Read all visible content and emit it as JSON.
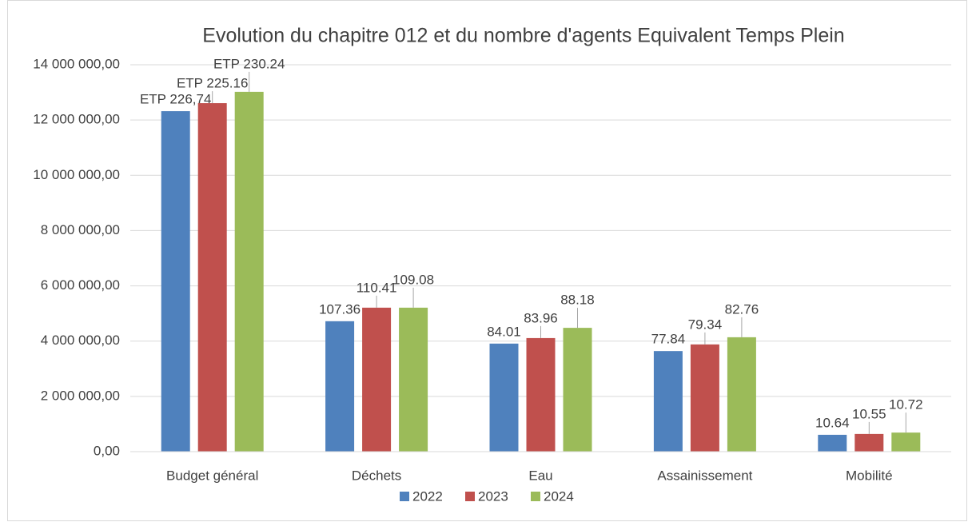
{
  "chart_data": {
    "type": "bar",
    "title": "Evolution du chapitre 012 et du nombre d'agents Equivalent Temps Plein",
    "categories": [
      "Budget général",
      "Déchets",
      "Eau",
      "Assainissement",
      "Mobilité"
    ],
    "series": [
      {
        "name": "2022",
        "color": "#4f81bd",
        "values": [
          12320000,
          4720000,
          3910000,
          3640000,
          610000
        ],
        "labels": [
          "ETP 226,74",
          "107.36",
          "84.01",
          "77.84",
          "10.64"
        ]
      },
      {
        "name": "2023",
        "color": "#c0504d",
        "values": [
          12610000,
          5210000,
          4110000,
          3880000,
          640000
        ],
        "labels": [
          "ETP 225.16",
          "110.41",
          "83.96",
          "79.34",
          "10.55"
        ]
      },
      {
        "name": "2024",
        "color": "#9bbb59",
        "values": [
          13020000,
          5210000,
          4480000,
          4140000,
          690000
        ],
        "labels": [
          "ETP 230.24",
          "109.08",
          "88.18",
          "82.76",
          "10.72"
        ]
      }
    ],
    "ylim": [
      0,
      14000000
    ],
    "yticks": [
      {
        "value": 0,
        "label": "0,00"
      },
      {
        "value": 2000000,
        "label": "2 000 000,00"
      },
      {
        "value": 4000000,
        "label": "4 000 000,00"
      },
      {
        "value": 6000000,
        "label": "6 000 000,00"
      },
      {
        "value": 8000000,
        "label": "8 000 000,00"
      },
      {
        "value": 10000000,
        "label": "10 000 000,00"
      },
      {
        "value": 12000000,
        "label": "12 000 000,00"
      },
      {
        "value": 14000000,
        "label": "14 000 000,00"
      }
    ],
    "grid": true,
    "legend": "bottom"
  }
}
